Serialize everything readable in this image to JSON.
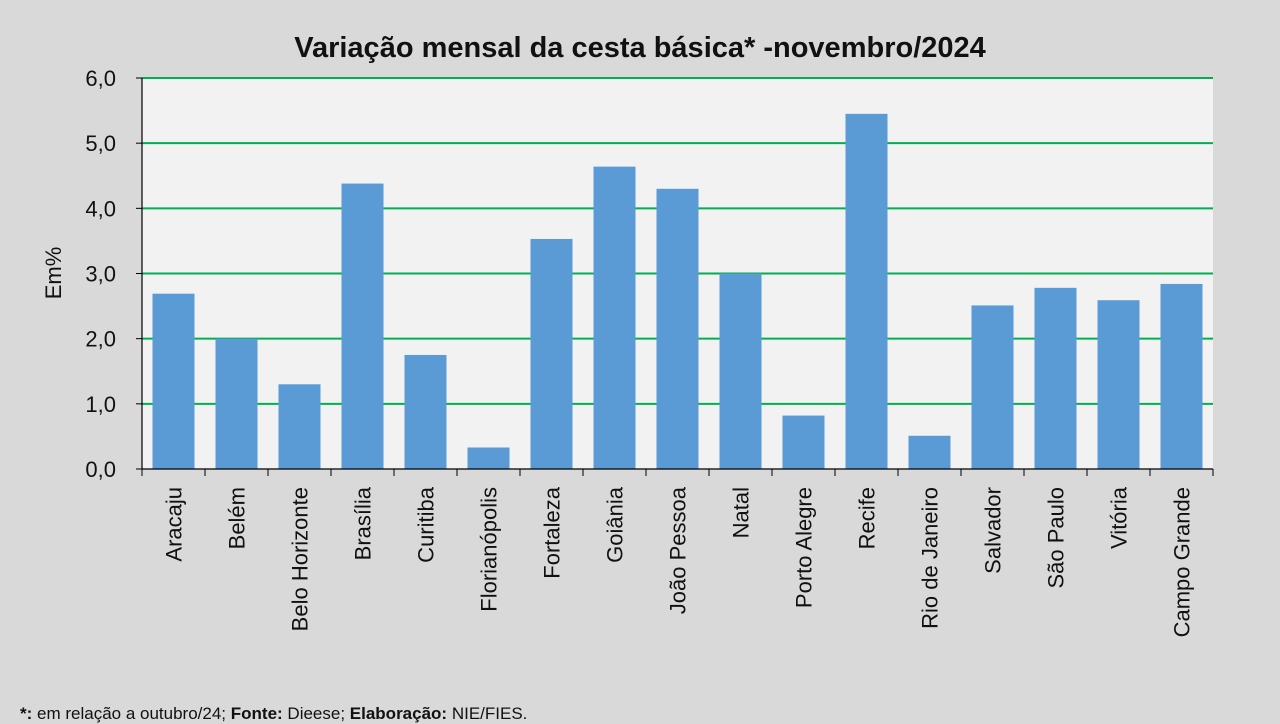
{
  "chart_data": {
    "type": "bar",
    "title": "Variação  mensal da cesta básica* -novembro/2024",
    "ylabel": "Em%",
    "xlabel": "",
    "ylim": [
      0,
      6
    ],
    "yticks": [
      "0,0",
      "1,0",
      "2,0",
      "3,0",
      "4,0",
      "5,0",
      "6,0"
    ],
    "grid": true,
    "bar_color": "#5b9bd5",
    "grid_color": "#00b050",
    "plot_background": "#f2f2f2",
    "categories": [
      "Aracaju",
      "Belém",
      "Belo Horizonte",
      "Brasília",
      "Curitiba",
      "Florianópolis",
      "Fortaleza",
      "Goiânia",
      "João Pessoa",
      "Natal",
      "Porto Alegre",
      "Recife",
      "Rio de Janeiro",
      "Salvador",
      "São Paulo",
      "Vitória",
      "Campo Grande"
    ],
    "values": [
      2.69,
      2.0,
      1.3,
      4.38,
      1.75,
      0.33,
      3.53,
      4.64,
      4.3,
      3.0,
      0.82,
      5.45,
      0.51,
      2.51,
      2.78,
      2.59,
      2.84
    ]
  },
  "footnote": {
    "asterisk_label": "*:",
    "asterisk_text": " em relação a outubro/24; ",
    "source_label": "Fonte:",
    "source_text": " Dieese; ",
    "elaboration_label": "Elaboração:",
    "elaboration_text": " NIE/FIES."
  }
}
